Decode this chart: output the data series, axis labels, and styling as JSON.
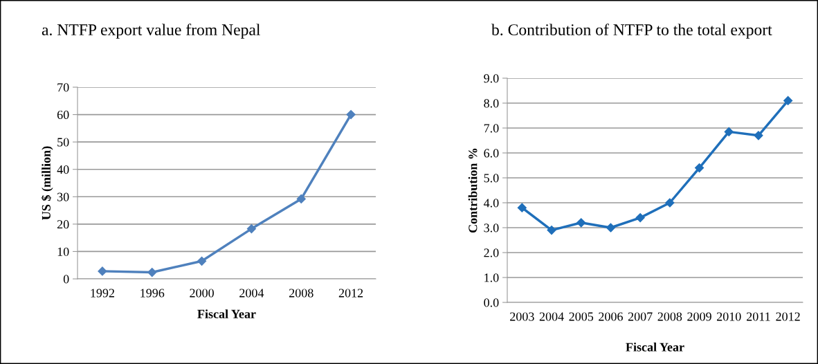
{
  "chart_data": [
    {
      "type": "line",
      "title": "a. NTFP export value from Nepal",
      "xlabel": "Fiscal Year",
      "ylabel": "US $ (million)",
      "categories": [
        "1992",
        "1996",
        "2000",
        "2004",
        "2008",
        "2012"
      ],
      "series": [
        {
          "color": "#4f81bd",
          "values": [
            2.8,
            2.4,
            6.5,
            18.3,
            29.2,
            60
          ]
        }
      ],
      "ylim": [
        0,
        70
      ],
      "yticks": [
        0,
        10,
        20,
        30,
        40,
        50,
        60,
        70
      ],
      "grid": "y",
      "marker": "diamond",
      "line_style": "solid",
      "legend": false
    },
    {
      "type": "line",
      "title": "b. Contribution of NTFP to the total export",
      "xlabel": "Fiscal Year",
      "ylabel": "Contribution %",
      "categories": [
        "2003",
        "2004",
        "2005",
        "2006",
        "2007",
        "2008",
        "2009",
        "2010",
        "2011",
        "2012"
      ],
      "series": [
        {
          "color": "#1f6fba",
          "values": [
            3.8,
            2.9,
            3.2,
            3.0,
            3.4,
            4.0,
            5.4,
            6.85,
            6.7,
            8.1
          ]
        }
      ],
      "ylim": [
        0,
        9
      ],
      "yticks": [
        {
          "value": 0,
          "label": "0.0"
        },
        {
          "value": 1,
          "label": "1.0"
        },
        {
          "value": 2,
          "label": "2.0"
        },
        {
          "value": 3,
          "label": "3.0"
        },
        {
          "value": 4,
          "label": "4.0"
        },
        {
          "value": 5,
          "label": "5.0"
        },
        {
          "value": 6,
          "label": "6.0"
        },
        {
          "value": 7,
          "label": "7.0"
        },
        {
          "value": 8,
          "label": "8.0"
        },
        {
          "value": 9,
          "label": "9.0"
        }
      ],
      "grid": "y",
      "marker": "diamond",
      "line_style": "solid",
      "legend": false
    }
  ]
}
